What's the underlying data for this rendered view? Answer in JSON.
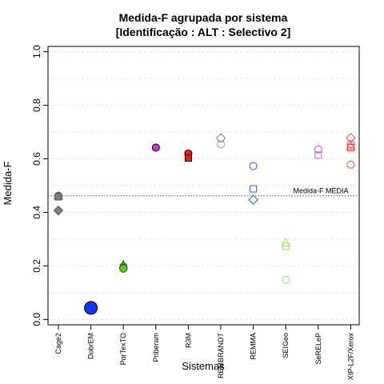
{
  "chart_data": {
    "type": "scatter",
    "title_line1": "Medida-F agrupada por sistema",
    "title_line2": "[Identificação : ALT : Selectivo 2]",
    "xlabel": "Sistemas",
    "ylabel": "Medida-F",
    "ylim": [
      -0.02,
      1.02
    ],
    "yticks": [
      0.0,
      0.2,
      0.4,
      0.6,
      0.8,
      1.0
    ],
    "ytick_labels": [
      "0.0",
      "0.2",
      "0.4",
      "0.6",
      "0.8",
      "1.0"
    ],
    "grid_y": [
      0.0,
      0.1,
      0.2,
      0.3,
      0.4,
      0.5,
      0.6,
      0.7,
      0.8,
      0.9,
      1.0
    ],
    "categories": [
      "Cage2",
      "DobrEM",
      "PorTexTO",
      "Priberam",
      "R3M",
      "REMBRANDT",
      "REMMA",
      "SEIGeo",
      "SeRELeP",
      "XIP-L2F/Xerox"
    ],
    "reference_line": {
      "value": 0.462,
      "label": "Medida-F MÉDIA"
    },
    "points": [
      {
        "cat": 0,
        "y": 0.462,
        "shape": "circle",
        "color": "#555555",
        "fill": "#808080"
      },
      {
        "cat": 0,
        "y": 0.46,
        "shape": "triangle",
        "color": "#555555",
        "fill": "#808080"
      },
      {
        "cat": 0,
        "y": 0.458,
        "shape": "square",
        "color": "#555555",
        "fill": "#808080"
      },
      {
        "cat": 0,
        "y": 0.407,
        "shape": "diamond",
        "color": "#555555",
        "fill": "#808080"
      },
      {
        "cat": 1,
        "y": 0.043,
        "shape": "circle-large",
        "color": "#000000",
        "fill": "#1133ee"
      },
      {
        "cat": 2,
        "y": 0.203,
        "shape": "triangle",
        "color": "#225500",
        "fill": "#66cc22"
      },
      {
        "cat": 2,
        "y": 0.195,
        "shape": "square",
        "color": "#225500",
        "fill": "#66cc22"
      },
      {
        "cat": 2,
        "y": 0.19,
        "shape": "circle",
        "color": "#225500",
        "fill": "#66cc22"
      },
      {
        "cat": 3,
        "y": 0.642,
        "shape": "circle",
        "color": "#000000",
        "fill": "#cc33dd"
      },
      {
        "cat": 4,
        "y": 0.62,
        "shape": "circle",
        "color": "#000000",
        "fill": "#dd2222"
      },
      {
        "cat": 4,
        "y": 0.603,
        "shape": "square",
        "color": "#000000",
        "fill": "#dd2222"
      },
      {
        "cat": 5,
        "y": 0.678,
        "shape": "diamond",
        "color": "#999999",
        "fill": "none"
      },
      {
        "cat": 5,
        "y": 0.676,
        "shape": "circle",
        "color": "#999999",
        "fill": "none"
      },
      {
        "cat": 5,
        "y": 0.654,
        "shape": "circle",
        "color": "#999999",
        "fill": "none"
      },
      {
        "cat": 6,
        "y": 0.573,
        "shape": "circle",
        "color": "#3355ee",
        "fill": "none"
      },
      {
        "cat": 6,
        "y": 0.488,
        "shape": "square",
        "color": "#3355ee",
        "fill": "none"
      },
      {
        "cat": 6,
        "y": 0.447,
        "shape": "diamond",
        "color": "#3355ee",
        "fill": "none"
      },
      {
        "cat": 7,
        "y": 0.285,
        "shape": "triangle",
        "color": "#88ee44",
        "fill": "none"
      },
      {
        "cat": 7,
        "y": 0.273,
        "shape": "square",
        "color": "#88ee44",
        "fill": "none"
      },
      {
        "cat": 7,
        "y": 0.148,
        "shape": "circle",
        "color": "#88ee44",
        "fill": "none"
      },
      {
        "cat": 8,
        "y": 0.635,
        "shape": "circle",
        "color": "#ee44cc",
        "fill": "none"
      },
      {
        "cat": 8,
        "y": 0.614,
        "shape": "square",
        "color": "#ee44cc",
        "fill": "none"
      },
      {
        "cat": 9,
        "y": 0.678,
        "shape": "diamond",
        "color": "#ee4444",
        "fill": "none"
      },
      {
        "cat": 9,
        "y": 0.655,
        "shape": "circle",
        "color": "#ee4444",
        "fill": "none"
      },
      {
        "cat": 9,
        "y": 0.647,
        "shape": "triangle",
        "color": "#ee4444",
        "fill": "none"
      },
      {
        "cat": 9,
        "y": 0.642,
        "shape": "square",
        "color": "#ee4444",
        "fill": "none"
      },
      {
        "cat": 9,
        "y": 0.578,
        "shape": "circle",
        "color": "#ee4444",
        "fill": "none"
      }
    ],
    "grid": true,
    "legend": "none"
  }
}
